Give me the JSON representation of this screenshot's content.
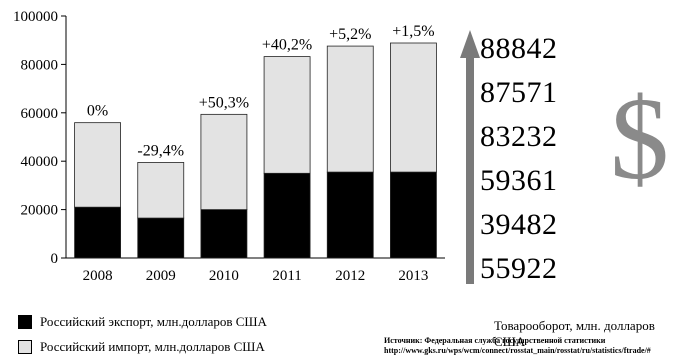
{
  "chart_data": {
    "type": "bar",
    "stacked": true,
    "categories": [
      "2008",
      "2009",
      "2010",
      "2011",
      "2012",
      "2013"
    ],
    "series": [
      {
        "name": "Российский экспорт, млн.долларов США",
        "color": "#000000",
        "values": [
          21000,
          16500,
          20000,
          35000,
          35500,
          35500
        ]
      },
      {
        "name": "Российский импорт, млн.долларов США",
        "color": "#e3e3e3",
        "values": [
          34922,
          22982,
          39361,
          48232,
          52071,
          53342
        ]
      }
    ],
    "totals": [
      55922,
      39482,
      59361,
      83232,
      87571,
      88842
    ],
    "growth_labels": [
      "0%",
      "-29,4%",
      "+50,3%",
      "+40,2%",
      "+5,2%",
      "+1,5%"
    ],
    "ylim": [
      0,
      100000
    ],
    "yticks": [
      "0",
      "20000",
      "40000",
      "60000",
      "80000",
      "100000"
    ],
    "title": "",
    "xlabel": "",
    "ylabel": "",
    "grid": false,
    "legend_position": "bottom-left"
  },
  "totals_list": [
    "88842",
    "87571",
    "83232",
    "59361",
    "39482",
    "55922"
  ],
  "dollar_sign": "$",
  "legend": {
    "export": "Российский экспорт, млн.долларов США",
    "import": "Российский импорт, млн.долларов США"
  },
  "note": "Товарооборот, млн. долларов США",
  "source": {
    "line1": "Источник: Федеральная служба государственной статистики",
    "line2": "http://www.gks.ru/wps/wcm/connect/rosstat_main/rosstat/ru/statistics/ftrade/#"
  },
  "colors": {
    "arrow": "#7a7a7a",
    "dollar": "#8a8a8a",
    "import": "#e3e3e3",
    "export": "#000000"
  }
}
